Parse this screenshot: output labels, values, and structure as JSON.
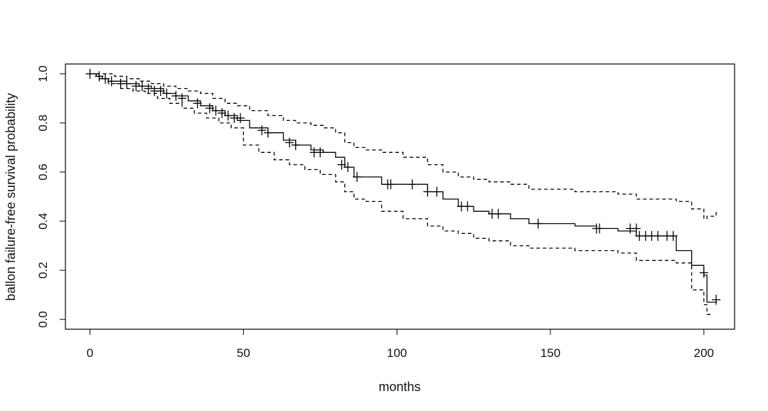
{
  "chart_data": {
    "type": "line",
    "title": "",
    "xlabel": "months",
    "ylabel": "ballon failure-free survival probability",
    "xlim": [
      -8,
      210
    ],
    "ylim": [
      -0.04,
      1.04
    ],
    "grid": false,
    "x_ticks": [
      0,
      50,
      100,
      150,
      200
    ],
    "x_tick_labels": [
      "0",
      "50",
      "100",
      "150",
      "200"
    ],
    "y_ticks": [
      0.0,
      0.2,
      0.4,
      0.6,
      0.8,
      1.0
    ],
    "y_tick_labels": [
      "0.0",
      "0.2",
      "0.4",
      "0.6",
      "0.8",
      "1.0"
    ],
    "series": [
      {
        "style": "solid",
        "color": "#000000",
        "x": [
          0,
          2,
          4,
          6,
          12,
          16,
          20,
          24,
          28,
          32,
          36,
          40,
          44,
          48,
          52,
          58,
          63,
          67,
          72,
          76,
          80,
          83,
          86,
          90,
          95,
          102,
          110,
          115,
          120,
          125,
          130,
          137,
          143,
          150,
          158,
          165,
          172,
          178,
          185,
          191,
          196,
          200,
          201,
          204
        ],
        "y": [
          1.0,
          0.99,
          0.98,
          0.97,
          0.96,
          0.95,
          0.94,
          0.92,
          0.91,
          0.89,
          0.87,
          0.85,
          0.83,
          0.81,
          0.78,
          0.76,
          0.73,
          0.71,
          0.69,
          0.68,
          0.66,
          0.62,
          0.58,
          0.58,
          0.55,
          0.55,
          0.52,
          0.49,
          0.46,
          0.44,
          0.43,
          0.41,
          0.39,
          0.39,
          0.38,
          0.37,
          0.36,
          0.34,
          0.34,
          0.28,
          0.22,
          0.18,
          0.07,
          0.08
        ]
      },
      {
        "style": "dashed",
        "color": "#000000",
        "x": [
          0,
          5,
          8,
          12,
          16,
          20,
          24,
          28,
          32,
          36,
          40,
          44,
          48,
          52,
          58,
          63,
          67,
          72,
          76,
          80,
          83,
          86,
          90,
          95,
          102,
          110,
          115,
          120,
          125,
          130,
          137,
          143,
          150,
          158,
          165,
          172,
          178,
          185,
          191,
          196,
          200,
          201,
          204
        ],
        "y": [
          1.0,
          1.0,
          0.99,
          0.98,
          0.97,
          0.96,
          0.95,
          0.94,
          0.93,
          0.92,
          0.9,
          0.88,
          0.87,
          0.85,
          0.83,
          0.81,
          0.8,
          0.79,
          0.78,
          0.76,
          0.72,
          0.7,
          0.69,
          0.68,
          0.66,
          0.63,
          0.6,
          0.58,
          0.57,
          0.56,
          0.55,
          0.53,
          0.53,
          0.52,
          0.52,
          0.51,
          0.49,
          0.49,
          0.48,
          0.45,
          0.41,
          0.42,
          0.44
        ]
      },
      {
        "style": "dashed",
        "color": "#000000",
        "x": [
          0,
          3,
          6,
          10,
          14,
          18,
          22,
          26,
          30,
          34,
          38,
          42,
          46,
          50,
          55,
          60,
          65,
          70,
          75,
          80,
          83,
          86,
          90,
          95,
          102,
          110,
          115,
          120,
          125,
          130,
          137,
          143,
          150,
          158,
          165,
          172,
          178,
          185,
          191,
          196,
          200,
          201,
          203
        ],
        "y": [
          1.0,
          0.98,
          0.96,
          0.94,
          0.93,
          0.92,
          0.9,
          0.88,
          0.86,
          0.84,
          0.82,
          0.8,
          0.78,
          0.71,
          0.68,
          0.65,
          0.63,
          0.61,
          0.59,
          0.56,
          0.52,
          0.49,
          0.48,
          0.44,
          0.41,
          0.38,
          0.36,
          0.35,
          0.33,
          0.32,
          0.3,
          0.29,
          0.29,
          0.28,
          0.28,
          0.27,
          0.24,
          0.24,
          0.23,
          0.12,
          0.06,
          0.02,
          0.02
        ]
      }
    ],
    "censor_marks": {
      "marker": "+",
      "x": [
        0,
        3,
        5,
        7,
        10,
        12,
        15,
        17,
        19,
        21,
        23,
        25,
        28,
        30,
        35,
        39,
        41,
        43,
        45,
        47,
        49,
        56,
        58,
        65,
        67,
        73,
        75,
        82,
        84,
        87,
        97,
        98,
        105,
        110,
        113,
        121,
        123,
        131,
        133,
        146,
        165,
        166,
        176,
        178,
        179,
        181,
        183,
        185,
        188,
        190,
        200,
        204
      ],
      "y": [
        1.0,
        0.99,
        0.98,
        0.97,
        0.96,
        0.96,
        0.95,
        0.95,
        0.94,
        0.93,
        0.93,
        0.92,
        0.91,
        0.9,
        0.88,
        0.86,
        0.85,
        0.84,
        0.83,
        0.82,
        0.82,
        0.77,
        0.76,
        0.72,
        0.71,
        0.68,
        0.68,
        0.63,
        0.62,
        0.58,
        0.55,
        0.55,
        0.55,
        0.52,
        0.52,
        0.46,
        0.46,
        0.43,
        0.43,
        0.39,
        0.37,
        0.37,
        0.37,
        0.37,
        0.34,
        0.34,
        0.34,
        0.34,
        0.34,
        0.34,
        0.19,
        0.08
      ]
    }
  }
}
